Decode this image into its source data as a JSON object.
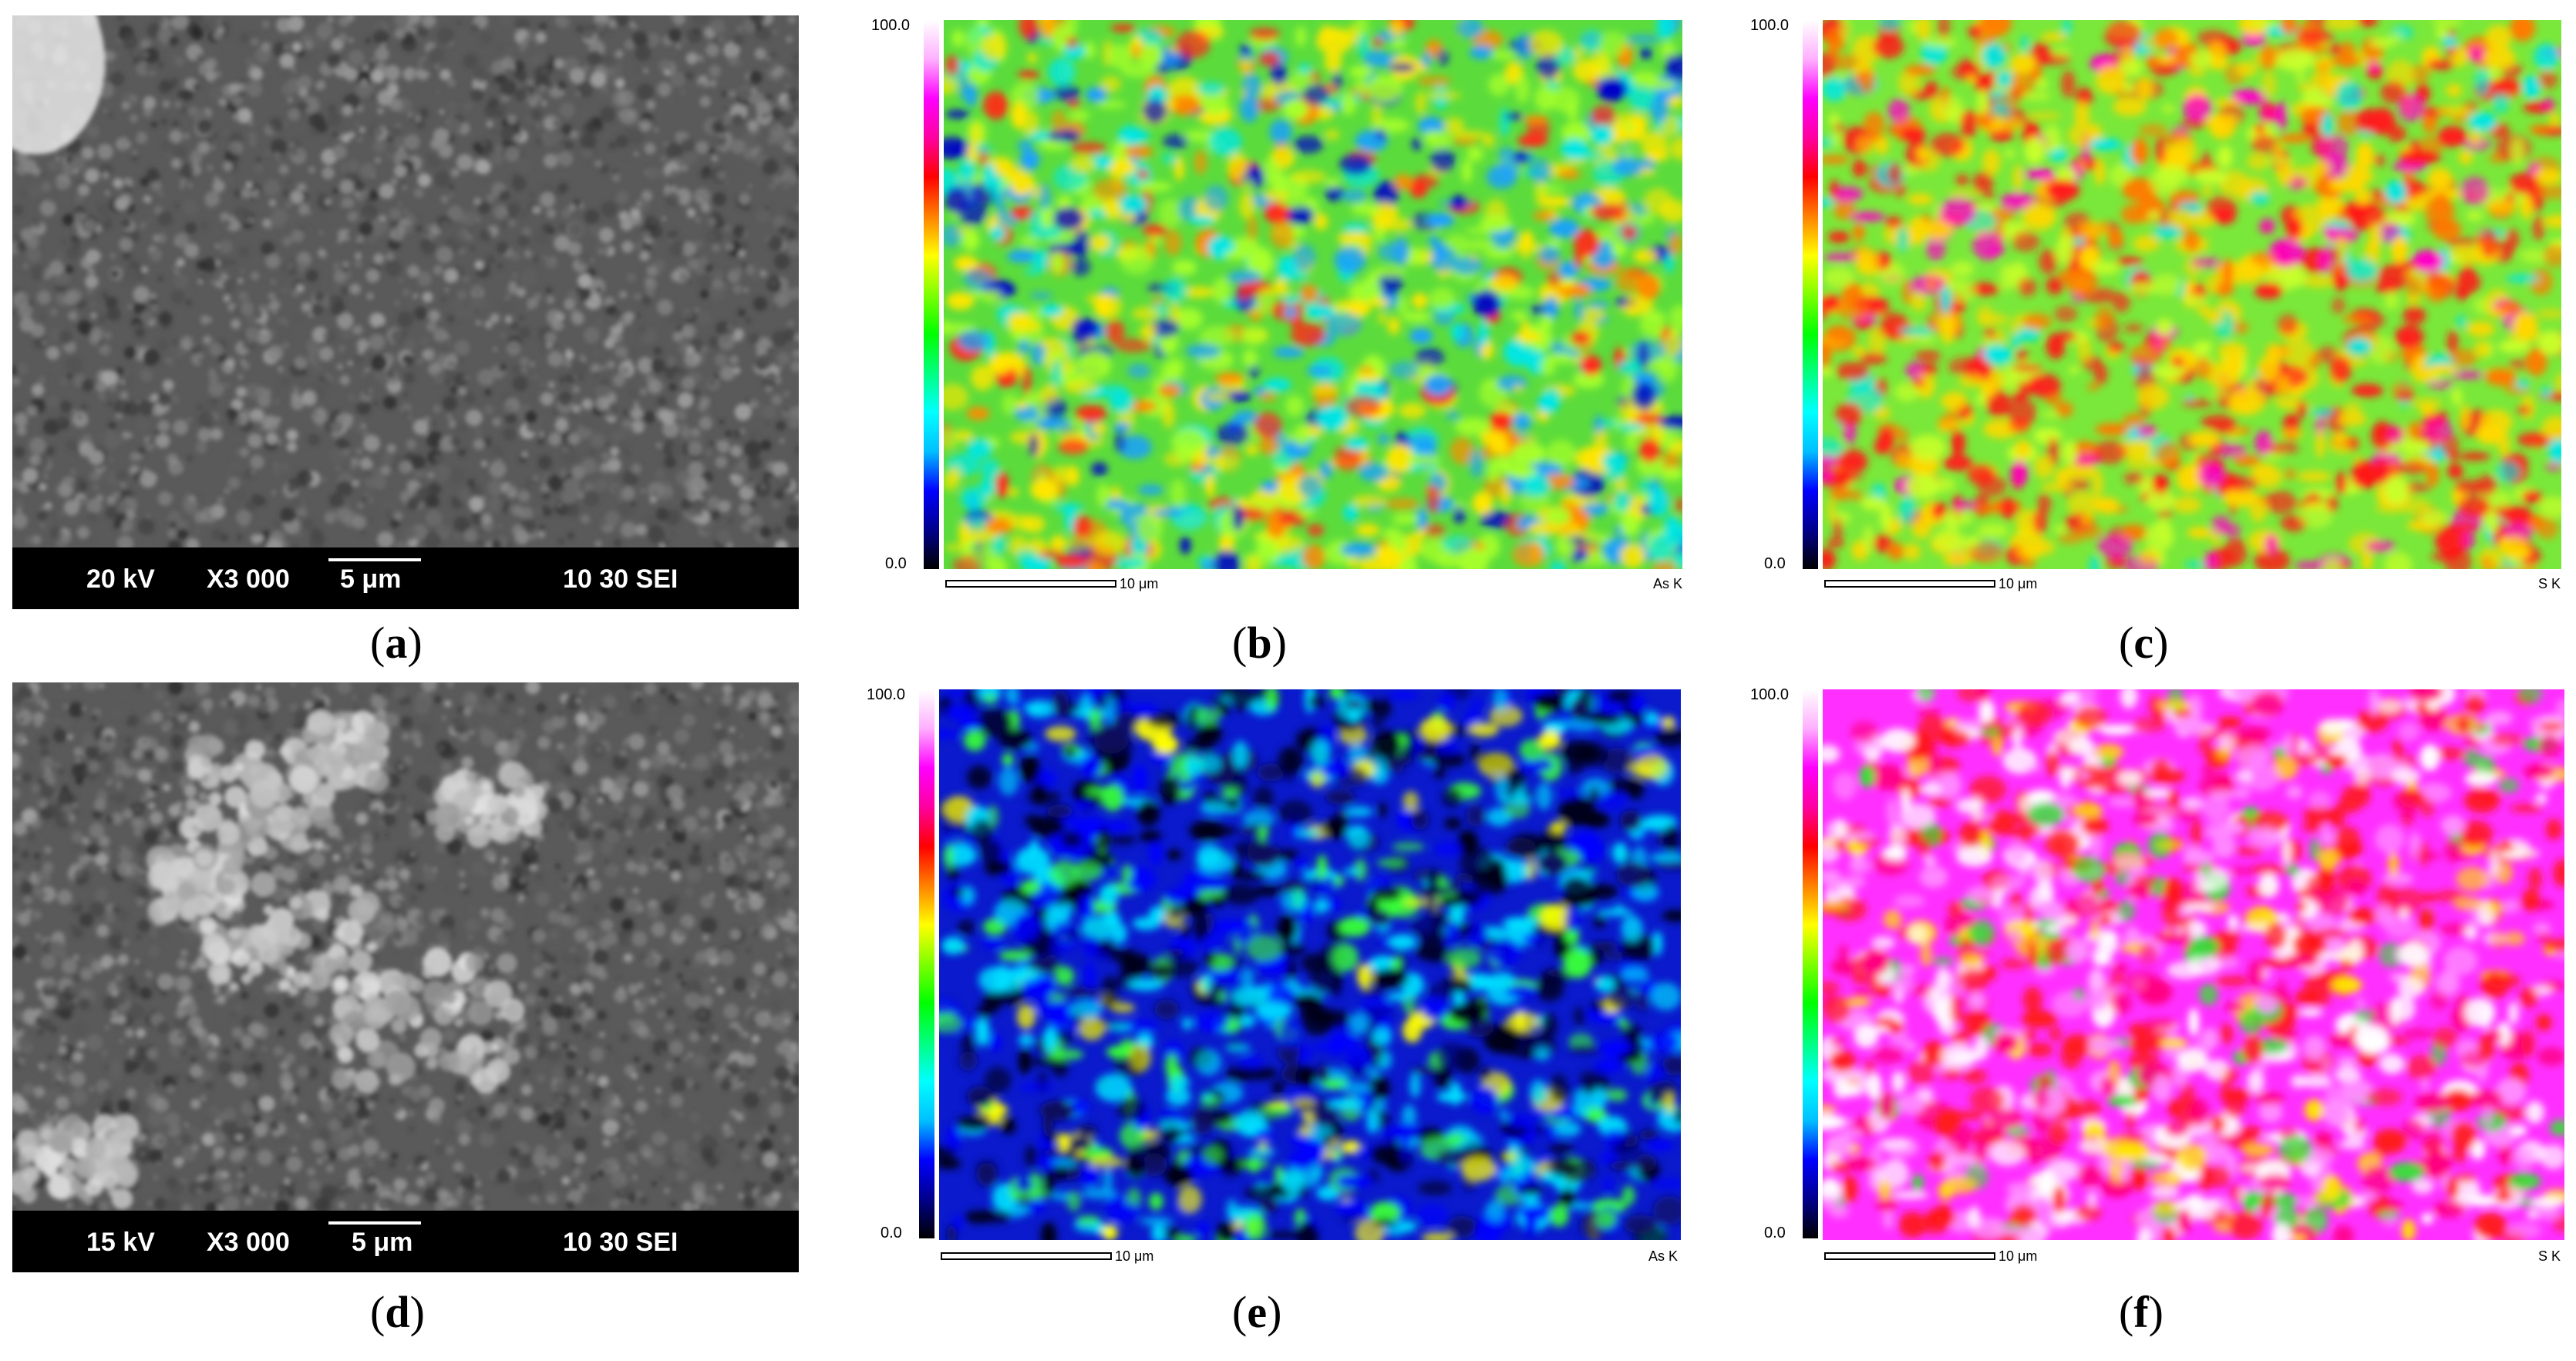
{
  "figure": {
    "panels": [
      {
        "id": "a",
        "type": "sem",
        "caption_open": "(",
        "caption_letter": "a",
        "caption_close": ")",
        "voltage": "20 kV",
        "magnification": "X3 000",
        "scale": "5 μm",
        "info": "10 30 SEI"
      },
      {
        "id": "b",
        "type": "eds",
        "caption_open": "(",
        "caption_letter": "b",
        "caption_close": ")",
        "max": "100.0",
        "min": "0.0",
        "scale": "10 μm",
        "element": "As K",
        "palette": "green"
      },
      {
        "id": "c",
        "type": "eds",
        "caption_open": "(",
        "caption_letter": "c",
        "caption_close": ")",
        "max": "100.0",
        "min": "0.0",
        "scale": "10 μm",
        "element": "S K",
        "palette": "red"
      },
      {
        "id": "d",
        "type": "sem",
        "caption_open": "(",
        "caption_letter": "d",
        "caption_close": ")",
        "voltage": "15 kV",
        "magnification": "X3 000",
        "scale": "5 μm",
        "info": "10 30 SEI"
      },
      {
        "id": "e",
        "type": "eds",
        "caption_open": "(",
        "caption_letter": "e",
        "caption_close": ")",
        "max": "100.0",
        "min": "0.0",
        "scale": "10 μm",
        "element": "As K",
        "palette": "blue"
      },
      {
        "id": "f",
        "type": "eds",
        "caption_open": "(",
        "caption_letter": "f",
        "caption_close": ")",
        "max": "100.0",
        "min": "0.0",
        "scale": "10 μm",
        "element": "S K",
        "palette": "magenta"
      }
    ]
  },
  "colors": {
    "colorbar": [
      "#000000",
      "#00008b",
      "#0000ff",
      "#00bfff",
      "#00ffff",
      "#00ff7f",
      "#00ff00",
      "#7fff00",
      "#ffff00",
      "#ff8000",
      "#ff0000",
      "#ff00a0",
      "#ff00ff",
      "#ffb0ff",
      "#ffffff"
    ],
    "palettes": {
      "green": {
        "base": "#5cdc3c",
        "blobs": [
          "#ffe600",
          "#ff2a1a",
          "#00e6e6",
          "#1aa0ff",
          "#0000c8",
          "#a8ff2a",
          "#ff8a00"
        ],
        "weights": [
          3,
          1,
          2,
          2,
          1,
          3,
          1
        ]
      },
      "red": {
        "base": "#7ae83a",
        "blobs": [
          "#ff1a1a",
          "#ffd800",
          "#ff00c8",
          "#00e6e6",
          "#ff7a00",
          "#c8ff2a"
        ],
        "weights": [
          4,
          3,
          1,
          1,
          2,
          2
        ]
      },
      "blue": {
        "base": "#0a1acc",
        "blobs": [
          "#000018",
          "#00e0ff",
          "#38ff38",
          "#0000ff",
          "#0a0a5a",
          "#ffff00"
        ],
        "weights": [
          4,
          3,
          2,
          3,
          2,
          1
        ]
      },
      "magenta": {
        "base": "#ff30ff",
        "blobs": [
          "#ffffff",
          "#ff1a1a",
          "#ffe600",
          "#ff90ff",
          "#ff0080",
          "#38e038"
        ],
        "weights": [
          4,
          4,
          1,
          3,
          2,
          1
        ]
      }
    }
  }
}
